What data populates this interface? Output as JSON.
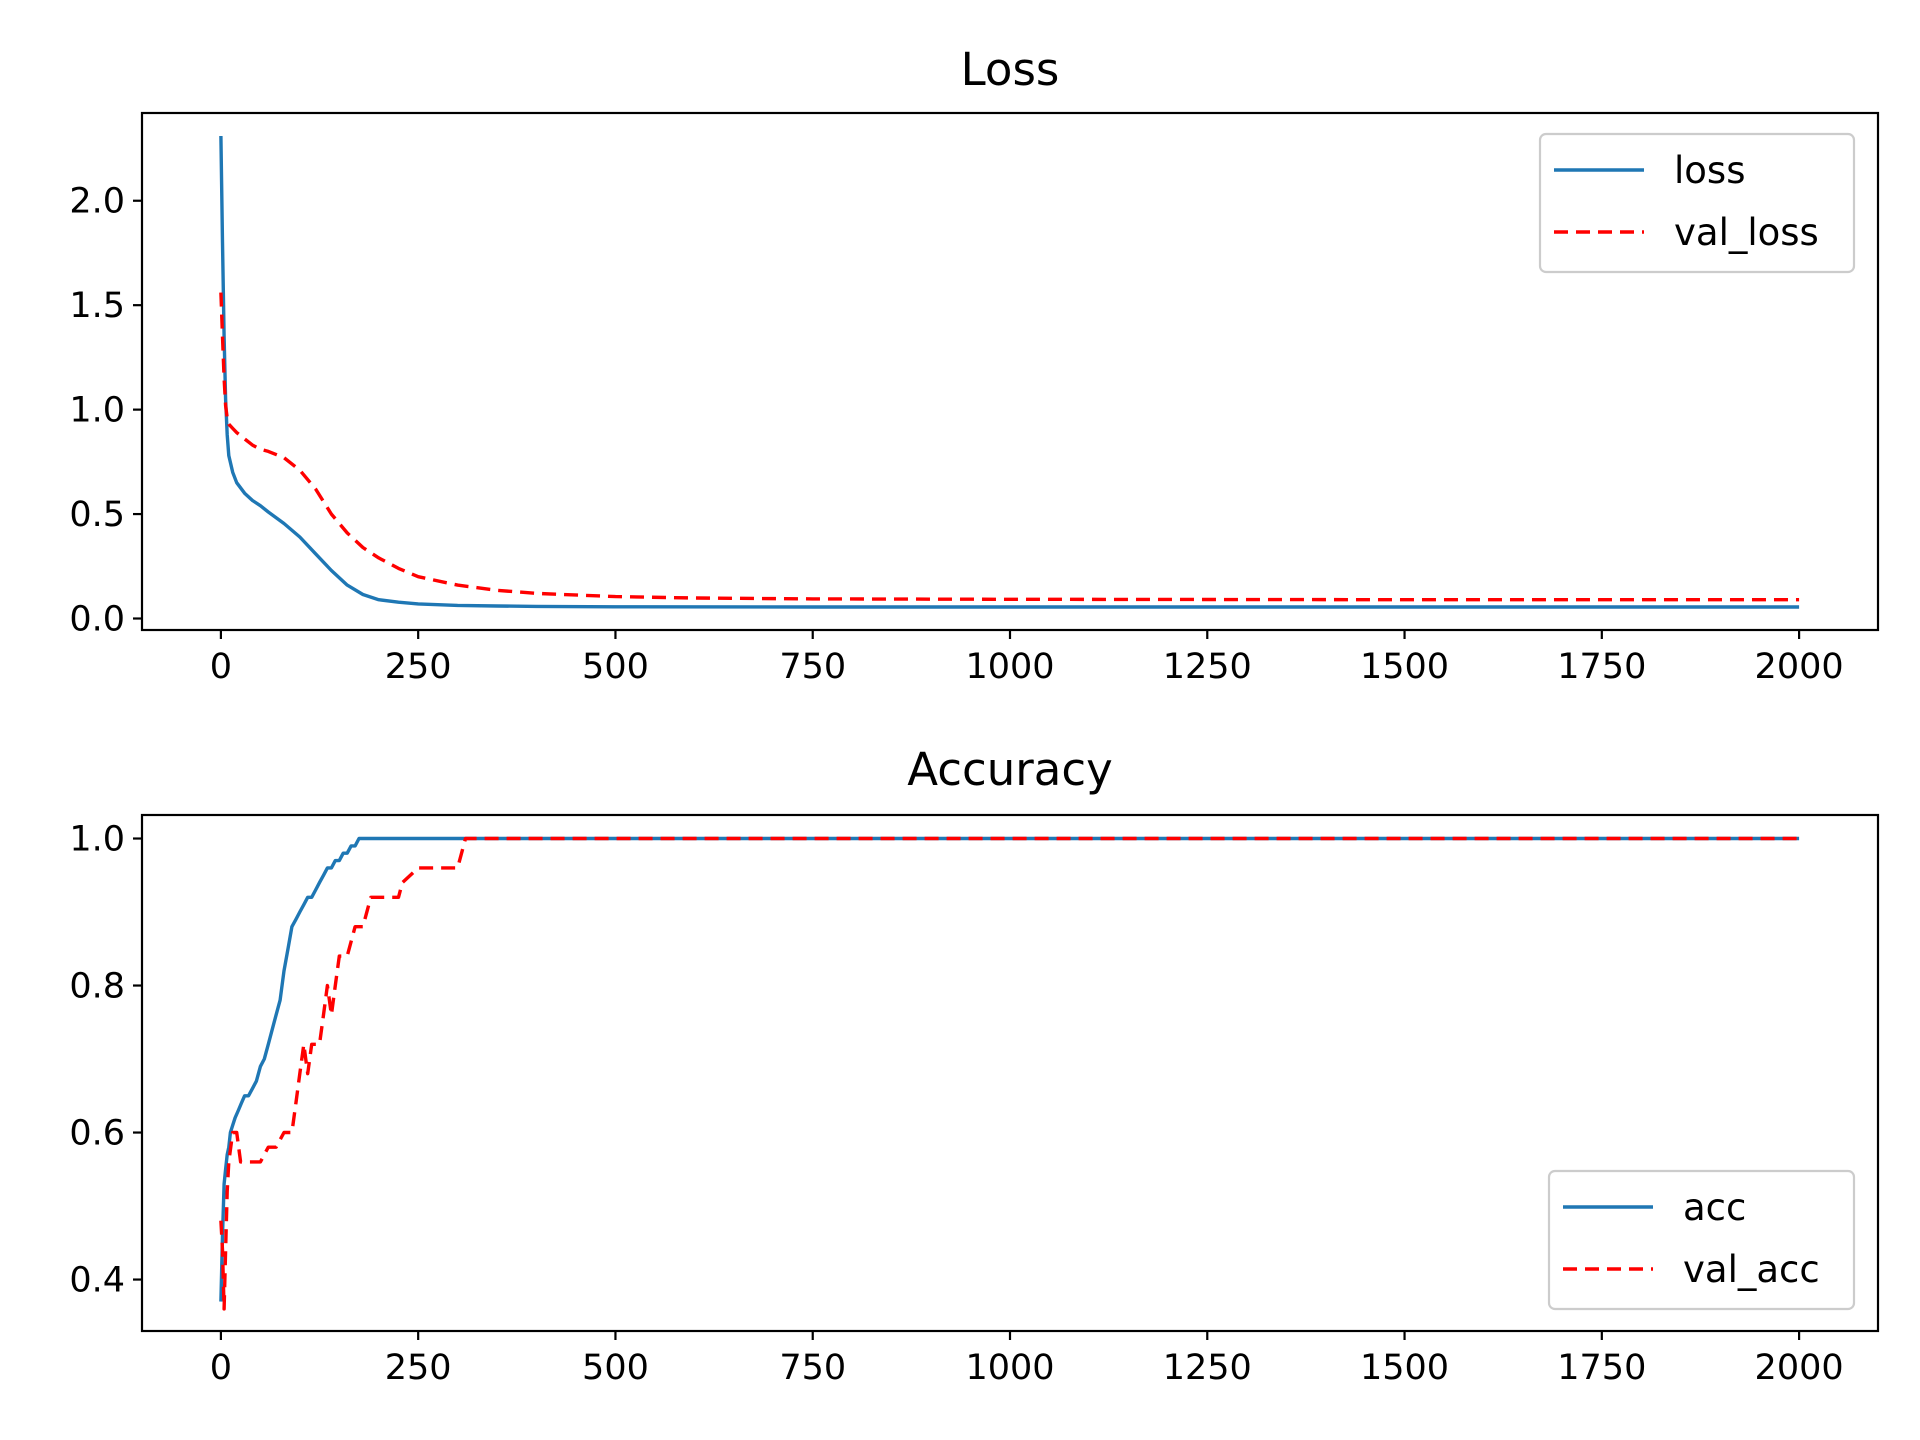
{
  "chart_data": [
    {
      "type": "line",
      "title": "Loss",
      "xlabel": "",
      "ylabel": "",
      "xlim": [
        -100,
        2100
      ],
      "ylim": [
        -0.055,
        2.42
      ],
      "xticks": [
        0,
        250,
        500,
        750,
        1000,
        1250,
        1500,
        1750,
        2000
      ],
      "yticks": [
        0.0,
        0.5,
        1.0,
        1.5,
        2.0
      ],
      "ytick_format": "fixed1",
      "grid": false,
      "legend_position": "upper-right",
      "series": [
        {
          "name": "loss",
          "color": "#1f77b4",
          "style": "solid",
          "x": [
            0,
            2,
            4,
            6,
            8,
            10,
            15,
            20,
            30,
            40,
            50,
            60,
            80,
            100,
            120,
            140,
            160,
            180,
            200,
            225,
            250,
            300,
            350,
            400,
            500,
            750,
            1000,
            1250,
            1500,
            1750,
            2000
          ],
          "y": [
            2.31,
            1.8,
            1.35,
            1.05,
            0.88,
            0.78,
            0.7,
            0.65,
            0.6,
            0.565,
            0.54,
            0.51,
            0.455,
            0.39,
            0.31,
            0.23,
            0.16,
            0.115,
            0.09,
            0.078,
            0.07,
            0.063,
            0.06,
            0.058,
            0.056,
            0.055,
            0.055,
            0.055,
            0.055,
            0.055,
            0.055
          ]
        },
        {
          "name": "val_loss",
          "color": "#ff0000",
          "style": "dashed",
          "x": [
            0,
            2,
            4,
            6,
            8,
            10,
            15,
            20,
            30,
            40,
            50,
            60,
            80,
            100,
            120,
            140,
            160,
            180,
            200,
            225,
            250,
            300,
            350,
            400,
            500,
            600,
            750,
            1000,
            1250,
            1500,
            1750,
            2000
          ],
          "y": [
            1.56,
            1.35,
            1.15,
            1.02,
            0.96,
            0.93,
            0.91,
            0.89,
            0.86,
            0.83,
            0.81,
            0.8,
            0.77,
            0.71,
            0.62,
            0.5,
            0.41,
            0.34,
            0.29,
            0.24,
            0.2,
            0.16,
            0.135,
            0.12,
            0.105,
            0.098,
            0.094,
            0.092,
            0.091,
            0.09,
            0.09,
            0.09
          ]
        }
      ]
    },
    {
      "type": "line",
      "title": "Accuracy",
      "xlabel": "",
      "ylabel": "",
      "xlim": [
        -100,
        2100
      ],
      "ylim": [
        0.33,
        1.032
      ],
      "xticks": [
        0,
        250,
        500,
        750,
        1000,
        1250,
        1500,
        1750,
        2000
      ],
      "yticks": [
        0.4,
        0.6,
        0.8,
        1.0
      ],
      "ytick_format": "fixed1",
      "grid": false,
      "legend_position": "lower-right",
      "series": [
        {
          "name": "acc",
          "color": "#1f77b4",
          "style": "solid",
          "x": [
            0,
            2,
            4,
            6,
            8,
            10,
            12,
            15,
            18,
            22,
            26,
            30,
            35,
            40,
            45,
            50,
            55,
            60,
            65,
            70,
            75,
            80,
            85,
            90,
            95,
            100,
            105,
            110,
            115,
            120,
            125,
            130,
            135,
            140,
            145,
            150,
            155,
            160,
            165,
            170,
            175,
            180,
            2000
          ],
          "y": [
            0.37,
            0.46,
            0.53,
            0.55,
            0.57,
            0.58,
            0.6,
            0.61,
            0.62,
            0.63,
            0.64,
            0.65,
            0.65,
            0.66,
            0.67,
            0.69,
            0.7,
            0.72,
            0.74,
            0.76,
            0.78,
            0.82,
            0.85,
            0.88,
            0.89,
            0.9,
            0.91,
            0.92,
            0.92,
            0.93,
            0.94,
            0.95,
            0.96,
            0.96,
            0.97,
            0.97,
            0.98,
            0.98,
            0.99,
            0.99,
            1.0,
            1.0,
            1.0
          ]
        },
        {
          "name": "val_acc",
          "color": "#ff0000",
          "style": "dashed",
          "x": [
            0,
            2,
            4,
            6,
            8,
            10,
            15,
            20,
            25,
            30,
            40,
            50,
            60,
            70,
            80,
            90,
            95,
            100,
            105,
            110,
            115,
            120,
            125,
            130,
            135,
            140,
            145,
            150,
            160,
            170,
            180,
            190,
            200,
            225,
            230,
            250,
            260,
            280,
            300,
            310,
            320,
            2000
          ],
          "y": [
            0.48,
            0.44,
            0.36,
            0.44,
            0.52,
            0.56,
            0.6,
            0.6,
            0.56,
            0.56,
            0.56,
            0.56,
            0.58,
            0.58,
            0.6,
            0.6,
            0.64,
            0.68,
            0.72,
            0.68,
            0.72,
            0.72,
            0.72,
            0.76,
            0.8,
            0.76,
            0.8,
            0.84,
            0.84,
            0.88,
            0.88,
            0.92,
            0.92,
            0.92,
            0.94,
            0.96,
            0.96,
            0.96,
            0.96,
            1.0,
            1.0,
            1.0
          ]
        }
      ]
    }
  ]
}
